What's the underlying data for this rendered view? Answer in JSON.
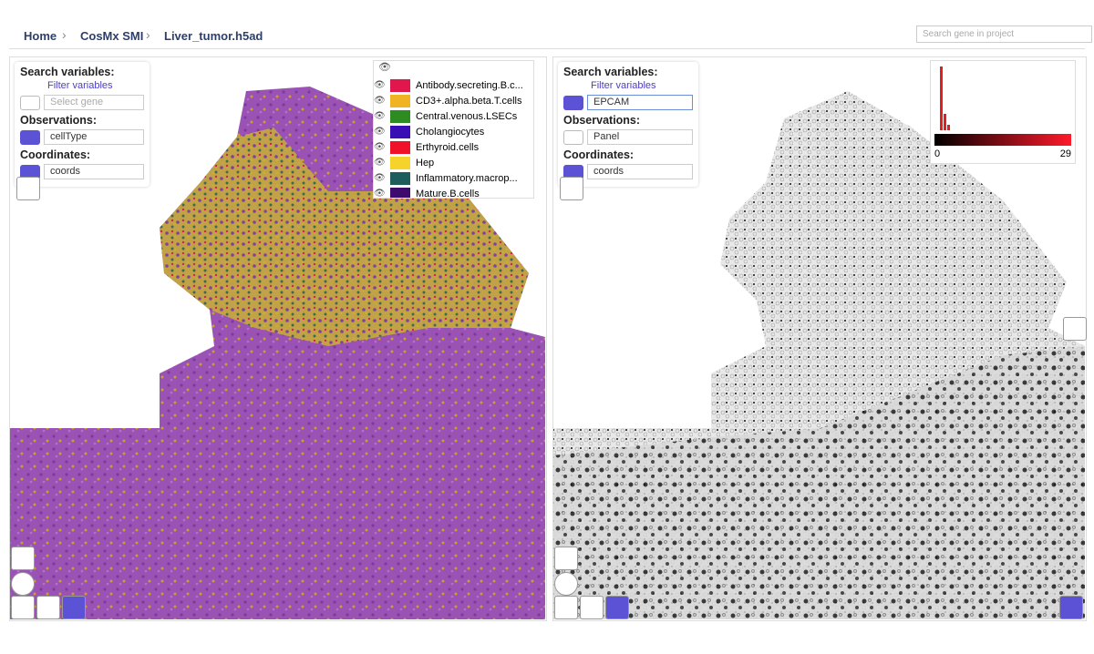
{
  "breadcrumb": [
    "Home",
    "CosMx SMI",
    "Liver_tumor.h5ad"
  ],
  "search_placeholder": "Search gene in project",
  "left_panel": {
    "search_label": "Search variables:",
    "filter": "Filter variables",
    "gene_placeholder": "Select gene",
    "observations_label": "Observations:",
    "observation": "cellType",
    "coordinates_label": "Coordinates:",
    "coordinates": "coords",
    "legend": [
      {
        "name": "Antibody.secreting.B.c...",
        "color": "#e0174c"
      },
      {
        "name": "CD3+.alpha.beta.T.cells",
        "color": "#f0b323"
      },
      {
        "name": "Central.venous.LSECs",
        "color": "#2e8b22"
      },
      {
        "name": "Cholangiocytes",
        "color": "#3a0eb5"
      },
      {
        "name": "Erthyroid.cells",
        "color": "#f0102a"
      },
      {
        "name": "Hep",
        "color": "#f5d32a"
      },
      {
        "name": "Inflammatory.macrop...",
        "color": "#1f5c5c"
      },
      {
        "name": "Mature.B.cells",
        "color": "#3d0a6e"
      }
    ]
  },
  "right_panel": {
    "search_label": "Search variables:",
    "filter": "Filter variables",
    "gene": "EPCAM",
    "observations_label": "Observations:",
    "observation": "Panel",
    "coordinates_label": "Coordinates:",
    "coordinates": "coords",
    "colorbar_min": "0",
    "colorbar_max": "29"
  }
}
